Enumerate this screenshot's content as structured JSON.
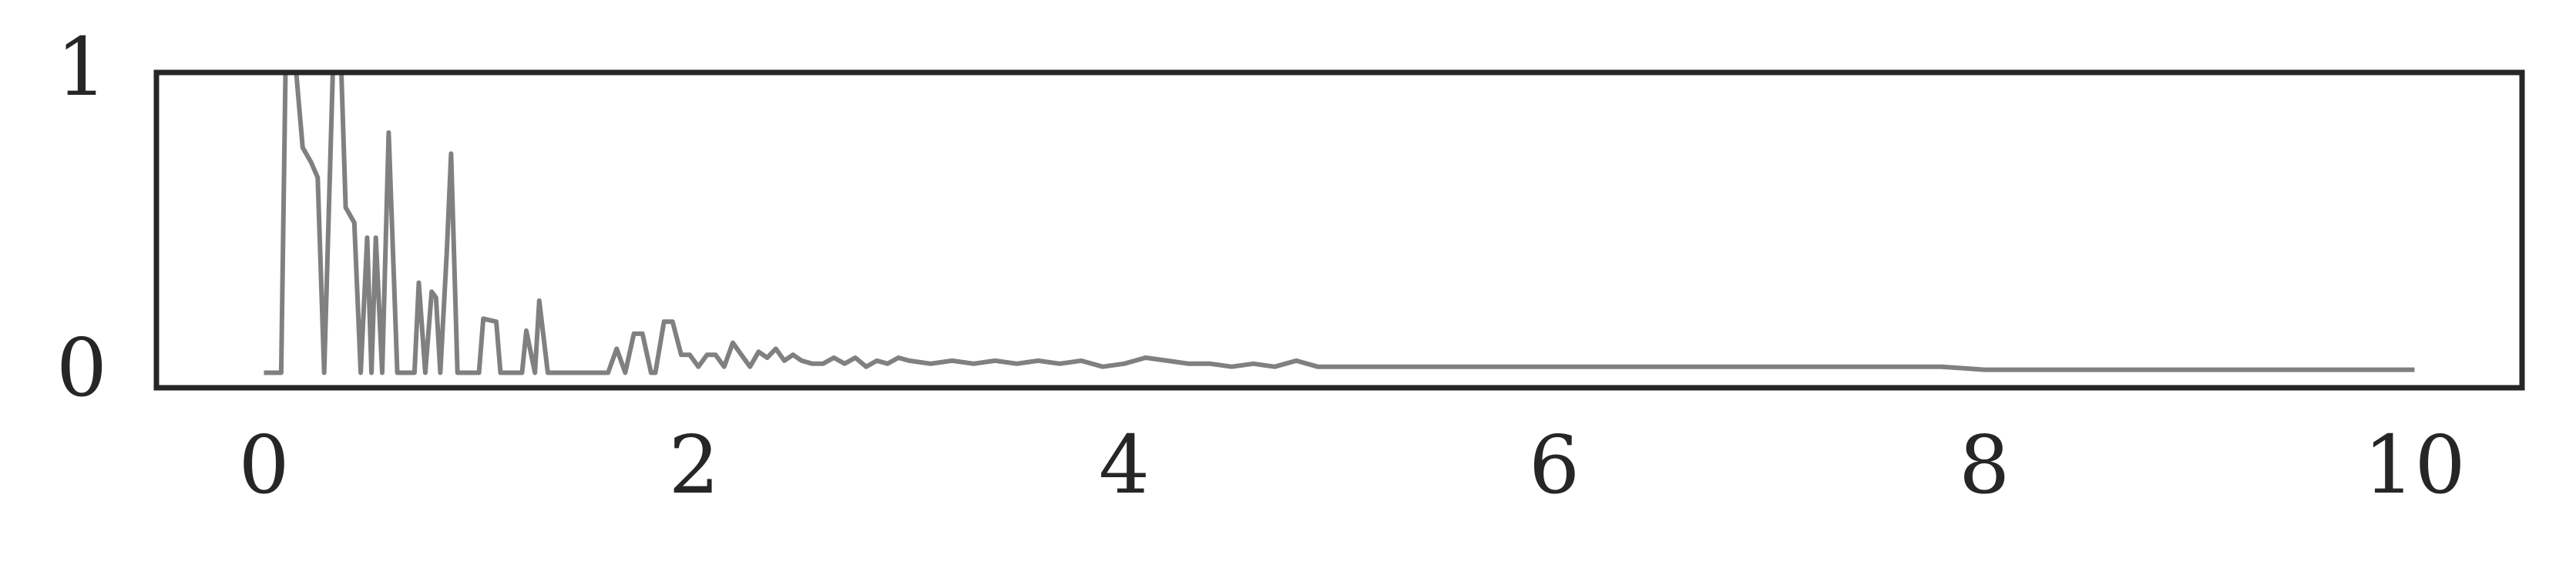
{
  "chart_data": {
    "type": "line",
    "x": [
      0.0,
      0.08,
      0.1,
      0.15,
      0.18,
      0.22,
      0.25,
      0.28,
      0.32,
      0.36,
      0.38,
      0.42,
      0.45,
      0.48,
      0.5,
      0.52,
      0.55,
      0.58,
      0.62,
      0.7,
      0.72,
      0.75,
      0.78,
      0.8,
      0.82,
      0.85,
      0.87,
      0.9,
      1.0,
      1.02,
      1.08,
      1.1,
      1.2,
      1.22,
      1.26,
      1.28,
      1.32,
      1.6,
      1.64,
      1.68,
      1.72,
      1.76,
      1.8,
      1.82,
      1.86,
      1.9,
      1.94,
      1.98,
      2.02,
      2.06,
      2.1,
      2.14,
      2.18,
      2.22,
      2.26,
      2.3,
      2.34,
      2.38,
      2.42,
      2.46,
      2.5,
      2.55,
      2.6,
      2.65,
      2.7,
      2.75,
      2.8,
      2.85,
      2.9,
      2.95,
      3.0,
      3.1,
      3.2,
      3.3,
      3.4,
      3.5,
      3.6,
      3.7,
      3.8,
      3.9,
      4.0,
      4.1,
      4.2,
      4.3,
      4.4,
      4.5,
      4.6,
      4.7,
      4.8,
      4.9,
      5.0,
      5.2,
      5.4,
      5.6,
      5.8,
      6.0,
      6.2,
      6.4,
      6.6,
      6.8,
      7.0,
      7.2,
      7.4,
      7.6,
      7.8,
      8.0,
      8.2,
      8.4,
      8.6,
      8.8,
      9.0,
      9.2,
      9.4,
      9.6,
      9.8,
      10.0
    ],
    "series": [
      {
        "color": "#808080",
        "values": [
          0.0,
          0.0,
          1.0,
          1.0,
          0.75,
          0.7,
          0.65,
          0.0,
          1.0,
          1.0,
          0.55,
          0.5,
          0.0,
          0.45,
          0.0,
          0.45,
          0.0,
          0.8,
          0.0,
          0.0,
          0.3,
          0.0,
          0.27,
          0.25,
          0.0,
          0.4,
          0.73,
          0.0,
          0.0,
          0.18,
          0.17,
          0.0,
          0.0,
          0.14,
          0.0,
          0.24,
          0.0,
          0.0,
          0.08,
          0.0,
          0.13,
          0.13,
          0.0,
          0.0,
          0.17,
          0.17,
          0.06,
          0.06,
          0.02,
          0.06,
          0.06,
          0.02,
          0.1,
          0.06,
          0.02,
          0.07,
          0.05,
          0.08,
          0.04,
          0.06,
          0.04,
          0.03,
          0.03,
          0.05,
          0.03,
          0.05,
          0.02,
          0.04,
          0.03,
          0.05,
          0.04,
          0.03,
          0.04,
          0.03,
          0.04,
          0.03,
          0.04,
          0.03,
          0.04,
          0.02,
          0.03,
          0.05,
          0.04,
          0.03,
          0.03,
          0.02,
          0.03,
          0.02,
          0.04,
          0.02,
          0.02,
          0.02,
          0.02,
          0.02,
          0.02,
          0.02,
          0.02,
          0.02,
          0.02,
          0.02,
          0.02,
          0.02,
          0.02,
          0.02,
          0.02,
          0.01,
          0.01,
          0.01,
          0.01,
          0.01,
          0.01,
          0.01,
          0.01,
          0.01,
          0.01,
          0.01
        ]
      }
    ],
    "xlim": [
      -0.5,
      10.5
    ],
    "ylim": [
      -0.05,
      1.0
    ],
    "xticks": [
      0,
      2,
      4,
      6,
      8,
      10
    ],
    "yticks": [
      0,
      1
    ]
  }
}
